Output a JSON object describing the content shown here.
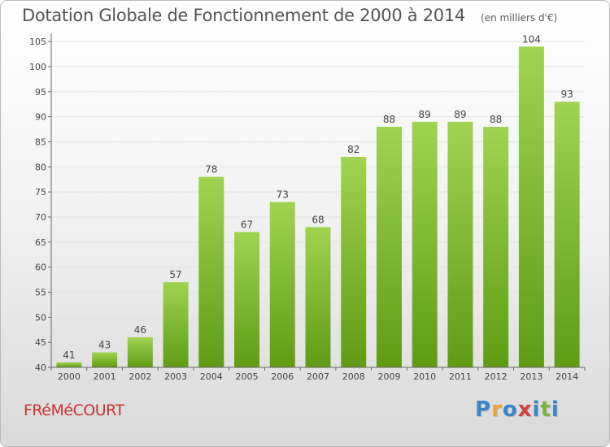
{
  "header": {
    "title": "Dotation Globale de Fonctionnement de 2000 à 2014",
    "units": "(en milliers d'€)"
  },
  "footer": {
    "commune": "FRéMéCOURT",
    "logo_text": "Proxiti"
  },
  "colors": {
    "bar_light": "#9fd451",
    "bar_dark": "#5f9c14",
    "axis": "#666666",
    "grid": "#e3e3e3",
    "title": "#555555",
    "commune": "#cc3333",
    "logo": [
      "#3a86c8",
      "#e8a33a",
      "#3a86c8",
      "#d43f3f",
      "#3a86c8",
      "#7cb342",
      "#3a86c8"
    ]
  },
  "chart_data": {
    "type": "bar",
    "title": "Dotation Globale de Fonctionnement de 2000 à 2014",
    "subtitle": "(en milliers d'€)",
    "xlabel": "",
    "ylabel": "",
    "categories": [
      "2000",
      "2001",
      "2002",
      "2003",
      "2004",
      "2005",
      "2006",
      "2007",
      "2008",
      "2009",
      "2010",
      "2011",
      "2012",
      "2013",
      "2014"
    ],
    "values": [
      41,
      43,
      46,
      57,
      78,
      67,
      73,
      68,
      82,
      88,
      89,
      89,
      88,
      104,
      93
    ],
    "data_labels": [
      "41",
      "43",
      "46",
      "57",
      "78",
      "67",
      "73",
      "68",
      "82",
      "88",
      "89",
      "89",
      "88",
      "104",
      "93"
    ],
    "ylim": [
      40,
      106
    ],
    "yticks": [
      40,
      45,
      50,
      55,
      60,
      65,
      70,
      75,
      80,
      85,
      90,
      95,
      100,
      105
    ],
    "grid": true,
    "legend": "none"
  }
}
